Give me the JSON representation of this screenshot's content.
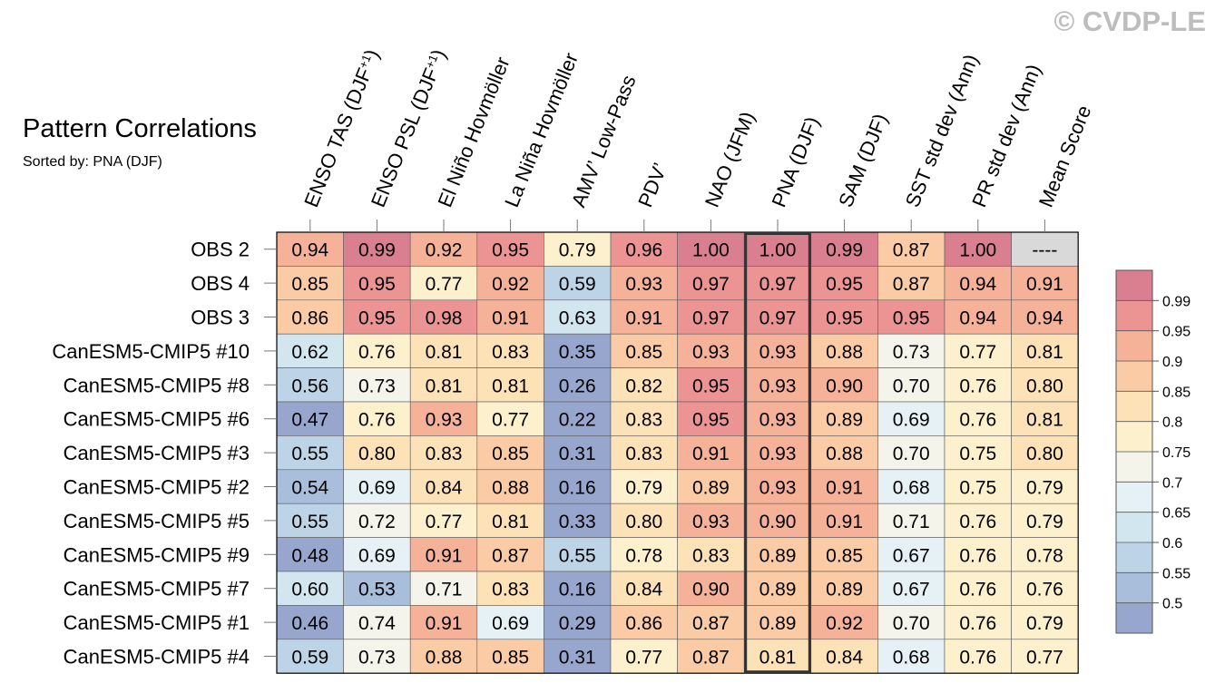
{
  "watermark": "© CVDP-LE",
  "chart_data": {
    "type": "heatmap",
    "title": "Pattern Correlations",
    "subtitle": "Sorted by: PNA (DJF)",
    "highlight_column": "PNA (DJF)",
    "columns": [
      [
        "ENSO TAS (DJF",
        "+1",
        ")"
      ],
      [
        "ENSO PSL (DJF",
        "+1",
        ")"
      ],
      [
        "El Niño Hovmöller"
      ],
      [
        "La Niña Hovmöller"
      ],
      [
        "AMV’ Low-Pass"
      ],
      [
        "PDV’"
      ],
      [
        "NAO (JFM)"
      ],
      [
        "PNA (DJF)"
      ],
      [
        "SAM (DJF)"
      ],
      [
        "SST std dev (Ann)"
      ],
      [
        "PR std dev (Ann)"
      ],
      [
        "Mean Score"
      ]
    ],
    "rows": [
      {
        "name": "OBS 2",
        "values": [
          "0.94",
          "0.99",
          "0.92",
          "0.95",
          "0.79",
          "0.96",
          "1.00",
          "1.00",
          "0.99",
          "0.87",
          "1.00",
          "----"
        ]
      },
      {
        "name": "OBS 4",
        "values": [
          "0.85",
          "0.95",
          "0.77",
          "0.92",
          "0.59",
          "0.93",
          "0.97",
          "0.97",
          "0.95",
          "0.87",
          "0.94",
          "0.91"
        ]
      },
      {
        "name": "OBS 3",
        "values": [
          "0.86",
          "0.95",
          "0.98",
          "0.91",
          "0.63",
          "0.91",
          "0.97",
          "0.97",
          "0.95",
          "0.95",
          "0.94",
          "0.94"
        ]
      },
      {
        "name": "CanESM5-CMIP5 #10",
        "values": [
          "0.62",
          "0.76",
          "0.81",
          "0.83",
          "0.35",
          "0.85",
          "0.93",
          "0.93",
          "0.88",
          "0.73",
          "0.77",
          "0.81"
        ]
      },
      {
        "name": "CanESM5-CMIP5 #8",
        "values": [
          "0.56",
          "0.73",
          "0.81",
          "0.81",
          "0.26",
          "0.82",
          "0.95",
          "0.93",
          "0.90",
          "0.70",
          "0.76",
          "0.80"
        ]
      },
      {
        "name": "CanESM5-CMIP5 #6",
        "values": [
          "0.47",
          "0.76",
          "0.93",
          "0.77",
          "0.22",
          "0.83",
          "0.95",
          "0.93",
          "0.89",
          "0.69",
          "0.76",
          "0.81"
        ]
      },
      {
        "name": "CanESM5-CMIP5 #3",
        "values": [
          "0.55",
          "0.80",
          "0.83",
          "0.85",
          "0.31",
          "0.83",
          "0.91",
          "0.93",
          "0.88",
          "0.70",
          "0.75",
          "0.80"
        ]
      },
      {
        "name": "CanESM5-CMIP5 #2",
        "values": [
          "0.54",
          "0.69",
          "0.84",
          "0.88",
          "0.16",
          "0.79",
          "0.89",
          "0.93",
          "0.91",
          "0.68",
          "0.75",
          "0.79"
        ]
      },
      {
        "name": "CanESM5-CMIP5 #5",
        "values": [
          "0.55",
          "0.72",
          "0.77",
          "0.81",
          "0.33",
          "0.80",
          "0.93",
          "0.90",
          "0.91",
          "0.71",
          "0.76",
          "0.79"
        ]
      },
      {
        "name": "CanESM5-CMIP5 #9",
        "values": [
          "0.48",
          "0.69",
          "0.91",
          "0.87",
          "0.55",
          "0.78",
          "0.83",
          "0.89",
          "0.85",
          "0.67",
          "0.76",
          "0.78"
        ]
      },
      {
        "name": "CanESM5-CMIP5 #7",
        "values": [
          "0.60",
          "0.53",
          "0.71",
          "0.83",
          "0.16",
          "0.84",
          "0.90",
          "0.89",
          "0.89",
          "0.67",
          "0.76",
          "0.76"
        ]
      },
      {
        "name": "CanESM5-CMIP5 #1",
        "values": [
          "0.46",
          "0.74",
          "0.91",
          "0.69",
          "0.29",
          "0.86",
          "0.87",
          "0.89",
          "0.92",
          "0.70",
          "0.76",
          "0.79"
        ]
      },
      {
        "name": "CanESM5-CMIP5 #4",
        "values": [
          "0.59",
          "0.73",
          "0.88",
          "0.85",
          "0.31",
          "0.77",
          "0.87",
          "0.81",
          "0.84",
          "0.68",
          "0.76",
          "0.77"
        ]
      }
    ],
    "missing_color": "#d9d9d9",
    "colorbar": {
      "bins": [
        "#97a6cd",
        "#a8bedb",
        "#bdd4e6",
        "#d2e6f0",
        "#e5f1f4",
        "#f4f4ea",
        "#fcf1cc",
        "#fde1b7",
        "#fbcba5",
        "#f6b298",
        "#eb9493",
        "#d97f8f"
      ],
      "tick_labels": [
        "0.5",
        "0.55",
        "0.6",
        "0.65",
        "0.7",
        "0.75",
        "0.8",
        "0.85",
        "0.9",
        "0.95",
        "0.99"
      ]
    }
  }
}
